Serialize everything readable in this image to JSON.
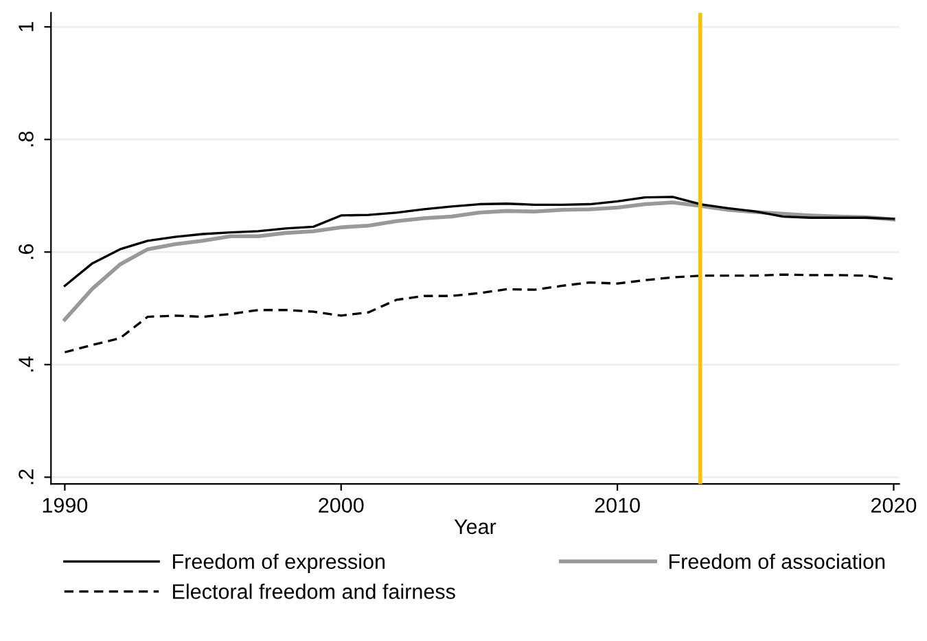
{
  "chart_data": {
    "type": "line",
    "xlabel": "Year",
    "x": [
      1990,
      1991,
      1992,
      1993,
      1994,
      1995,
      1996,
      1997,
      1998,
      1999,
      2000,
      2001,
      2002,
      2003,
      2004,
      2005,
      2006,
      2007,
      2008,
      2009,
      2010,
      2011,
      2012,
      2013,
      2014,
      2015,
      2016,
      2017,
      2018,
      2019,
      2020
    ],
    "series": [
      {
        "name": "Freedom of expression",
        "color": "#000000",
        "line_style": "solid",
        "values": [
          0.54,
          0.58,
          0.605,
          0.62,
          0.627,
          0.632,
          0.635,
          0.637,
          0.642,
          0.645,
          0.665,
          0.666,
          0.67,
          0.676,
          0.681,
          0.685,
          0.686,
          0.684,
          0.684,
          0.685,
          0.69,
          0.697,
          0.698,
          0.685,
          0.678,
          0.672,
          0.663,
          0.661,
          0.661,
          0.661,
          0.659
        ]
      },
      {
        "name": "Freedom of association",
        "color": "#999999",
        "line_style": "solid",
        "values": [
          0.48,
          0.535,
          0.578,
          0.605,
          0.614,
          0.62,
          0.628,
          0.628,
          0.634,
          0.637,
          0.644,
          0.647,
          0.655,
          0.66,
          0.663,
          0.67,
          0.673,
          0.672,
          0.675,
          0.676,
          0.679,
          0.685,
          0.688,
          0.682,
          0.675,
          0.671,
          0.668,
          0.665,
          0.663,
          0.662,
          0.658
        ]
      },
      {
        "name": "Electoral freedom and fairness",
        "color": "#000000",
        "line_style": "dashed",
        "values": [
          0.422,
          0.435,
          0.447,
          0.485,
          0.487,
          0.485,
          0.49,
          0.497,
          0.497,
          0.494,
          0.487,
          0.493,
          0.515,
          0.522,
          0.522,
          0.527,
          0.534,
          0.533,
          0.54,
          0.546,
          0.544,
          0.55,
          0.555,
          0.558,
          0.558,
          0.558,
          0.56,
          0.559,
          0.559,
          0.558,
          0.552
        ]
      }
    ],
    "xlim": [
      1989.5,
      2020.2
    ],
    "xticks": [
      1990,
      2000,
      2010,
      2020
    ],
    "ylim": [
      0.188,
      1.025
    ],
    "yticks": [
      {
        "value": 0.2,
        "label": ".2"
      },
      {
        "value": 0.4,
        "label": ".4"
      },
      {
        "value": 0.6,
        "label": ".6"
      },
      {
        "value": 0.8,
        "label": ".8"
      },
      {
        "value": 1,
        "label": "1"
      }
    ],
    "ref_lines": [
      {
        "axis": "x",
        "value": 2013,
        "color": "#f5c400"
      }
    ],
    "grid": "y",
    "legend": "bottom"
  }
}
